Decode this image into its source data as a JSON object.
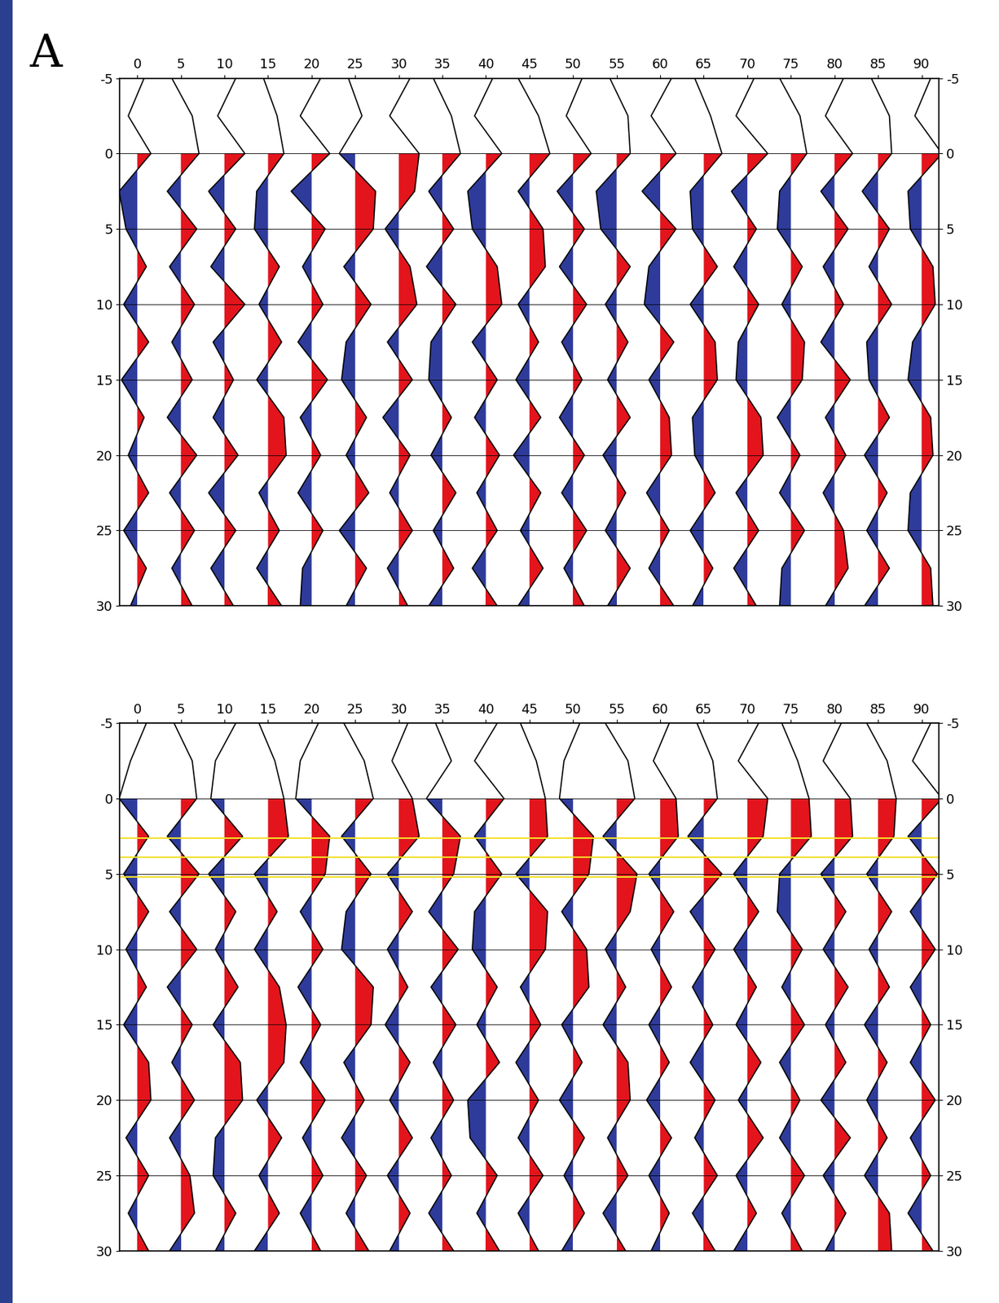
{
  "panel_label": "A",
  "chart_data": [
    {
      "type": "wiggle",
      "xlim": [
        -2,
        92
      ],
      "ylim": [
        -5,
        30
      ],
      "xticks": [
        0,
        5,
        10,
        15,
        20,
        25,
        30,
        35,
        40,
        45,
        50,
        55,
        60,
        65,
        70,
        75,
        80,
        85,
        90
      ],
      "yticks": [
        -5,
        0,
        5,
        10,
        15,
        20,
        25,
        30
      ],
      "grid": true,
      "fill_from": 0,
      "positive_color": "#e3141c",
      "negative_color": "#2e3b9a",
      "times": [
        -5,
        -2.5,
        0,
        2.5,
        5,
        7.5,
        10,
        12.5,
        15,
        17.5,
        20,
        22.5,
        25,
        27.5,
        30
      ],
      "traces": [
        {
          "position": 0,
          "amplitude": [
            0.3,
            -0.4,
            0.6,
            -0.8,
            -0.5,
            0.4,
            -0.6,
            0.5,
            -0.7,
            0.3,
            -0.4,
            0.5,
            -0.6,
            0.4,
            -0.3
          ]
        },
        {
          "position": 5,
          "amplitude": [
            -0.4,
            0.5,
            0.8,
            -0.6,
            0.7,
            -0.5,
            0.6,
            -0.4,
            0.5,
            -0.6,
            0.7,
            -0.5,
            0.6,
            -0.4,
            0.5
          ]
        },
        {
          "position": 10,
          "amplitude": [
            0.5,
            -0.3,
            0.9,
            -0.7,
            0.5,
            -0.6,
            0.9,
            -0.5,
            0.4,
            -0.5,
            0.6,
            -0.7,
            0.5,
            -0.6,
            0.4
          ]
        },
        {
          "position": 15,
          "amplitude": [
            -0.2,
            0.4,
            0.7,
            -0.5,
            -0.6,
            0.5,
            -0.4,
            0.6,
            -0.5,
            0.7,
            0.8,
            -0.4,
            0.5,
            -0.5,
            0.6
          ]
        },
        {
          "position": 20,
          "amplitude": [
            0.4,
            -0.5,
            0.8,
            -0.9,
            0.6,
            -0.4,
            0.5,
            -0.6,
            0.7,
            -0.5,
            0.4,
            -0.6,
            0.5,
            -0.4,
            -0.5
          ]
        },
        {
          "position": 25,
          "amplitude": [
            -0.3,
            0.3,
            -0.7,
            0.9,
            0.8,
            -0.5,
            0.7,
            -0.4,
            -0.6,
            0.5,
            -0.4,
            0.6,
            -0.7,
            0.5,
            -0.4
          ]
        },
        {
          "position": 30,
          "amplitude": [
            0.5,
            -0.4,
            0.9,
            0.7,
            -0.6,
            0.5,
            0.8,
            -0.5,
            0.6,
            -0.7,
            0.5,
            -0.4,
            0.6,
            -0.5,
            0.4
          ]
        },
        {
          "position": 35,
          "amplitude": [
            -0.4,
            0.4,
            0.8,
            -0.6,
            0.5,
            -0.7,
            0.6,
            -0.5,
            -0.6,
            0.4,
            -0.5,
            0.6,
            -0.4,
            0.5,
            -0.6
          ]
        },
        {
          "position": 40,
          "amplitude": [
            0.3,
            -0.5,
            0.7,
            -0.8,
            -0.6,
            0.5,
            0.7,
            -0.6,
            0.5,
            -0.5,
            0.6,
            -0.4,
            0.5,
            -0.6,
            0.5
          ]
        },
        {
          "position": 45,
          "amplitude": [
            -0.5,
            0.4,
            0.9,
            -0.5,
            0.6,
            0.7,
            -0.5,
            0.4,
            -0.6,
            0.5,
            -0.7,
            0.5,
            -0.4,
            0.6,
            -0.5
          ]
        },
        {
          "position": 50,
          "amplitude": [
            0.4,
            -0.3,
            0.8,
            -0.7,
            0.5,
            -0.6,
            0.6,
            -0.5,
            0.4,
            -0.6,
            0.5,
            -0.5,
            0.6,
            -0.4,
            0.5
          ]
        },
        {
          "position": 55,
          "amplitude": [
            -0.3,
            0.5,
            0.6,
            -0.9,
            -0.7,
            0.6,
            -0.5,
            0.5,
            -0.4,
            0.6,
            -0.6,
            0.4,
            -0.5,
            0.6,
            -0.4
          ]
        },
        {
          "position": 60,
          "amplitude": [
            0.5,
            -0.4,
            0.7,
            -0.8,
            0.7,
            -0.5,
            -0.7,
            0.6,
            -0.5,
            0.4,
            0.5,
            -0.6,
            0.4,
            -0.5,
            0.6
          ]
        },
        {
          "position": 65,
          "amplitude": [
            -0.4,
            0.3,
            0.8,
            -0.6,
            -0.5,
            0.6,
            -0.6,
            0.5,
            0.6,
            -0.5,
            -0.4,
            0.5,
            -0.6,
            0.4,
            -0.5
          ]
        },
        {
          "position": 70,
          "amplitude": [
            0.3,
            -0.5,
            0.9,
            -0.7,
            0.4,
            -0.6,
            0.5,
            -0.4,
            -0.5,
            0.6,
            0.7,
            -0.5,
            0.5,
            -0.6,
            0.4
          ]
        },
        {
          "position": 75,
          "amplitude": [
            -0.5,
            0.4,
            0.7,
            -0.5,
            -0.6,
            0.5,
            -0.4,
            0.6,
            0.5,
            -0.6,
            0.4,
            -0.5,
            0.6,
            -0.4,
            -0.5
          ]
        },
        {
          "position": 80,
          "amplitude": [
            0.4,
            -0.4,
            0.8,
            -0.6,
            0.6,
            -0.5,
            0.4,
            -0.6,
            0.7,
            -0.4,
            0.5,
            -0.5,
            0.4,
            0.6,
            -0.4
          ]
        },
        {
          "position": 85,
          "amplitude": [
            -0.3,
            0.5,
            0.6,
            -0.7,
            0.5,
            -0.4,
            0.6,
            -0.5,
            -0.4,
            0.5,
            -0.6,
            0.4,
            -0.5,
            0.5,
            -0.6
          ]
        },
        {
          "position": 90,
          "amplitude": [
            0.4,
            -0.3,
            0.9,
            -0.6,
            -0.5,
            0.5,
            0.6,
            -0.4,
            -0.6,
            0.4,
            0.5,
            -0.5,
            -0.6,
            0.4,
            0.5
          ]
        }
      ]
    },
    {
      "type": "wiggle",
      "xlim": [
        -2,
        92
      ],
      "ylim": [
        -5,
        30
      ],
      "xticks": [
        0,
        5,
        10,
        15,
        20,
        25,
        30,
        35,
        40,
        45,
        50,
        55,
        60,
        65,
        70,
        75,
        80,
        85,
        90
      ],
      "yticks": [
        -5,
        0,
        5,
        10,
        15,
        20,
        25,
        30
      ],
      "grid": true,
      "fill_from": 0,
      "positive_color": "#e3141c",
      "negative_color": "#2e3b9a",
      "picks": [
        2.6,
        3.9,
        5.2
      ],
      "picks_color": "#f2e02a",
      "times": [
        -5,
        -2.5,
        0,
        2.5,
        5,
        7.5,
        10,
        12.5,
        15,
        17.5,
        20,
        22.5,
        25,
        27.5,
        30
      ],
      "traces": [
        {
          "position": 0,
          "amplitude": [
            0.4,
            -0.3,
            -0.8,
            0.5,
            -0.6,
            0.5,
            -0.5,
            0.4,
            -0.6,
            0.5,
            0.6,
            -0.5,
            0.5,
            -0.4,
            0.5
          ]
        },
        {
          "position": 5,
          "amplitude": [
            -0.3,
            0.5,
            0.7,
            -0.6,
            0.8,
            -0.5,
            0.7,
            -0.6,
            0.5,
            -0.4,
            0.6,
            -0.5,
            0.4,
            0.6,
            -0.5
          ]
        },
        {
          "position": 10,
          "amplitude": [
            0.5,
            -0.4,
            -0.6,
            0.8,
            -0.7,
            0.5,
            -0.4,
            0.6,
            -0.5,
            0.7,
            0.8,
            -0.4,
            -0.5,
            0.5,
            -0.4
          ]
        },
        {
          "position": 15,
          "amplitude": [
            -0.4,
            0.3,
            0.7,
            0.9,
            -0.6,
            0.4,
            -0.6,
            0.5,
            0.8,
            0.7,
            -0.5,
            0.6,
            -0.4,
            0.5,
            -0.6
          ]
        },
        {
          "position": 20,
          "amplitude": [
            0.3,
            -0.5,
            -0.7,
            0.8,
            0.6,
            -0.5,
            0.5,
            -0.6,
            0.4,
            -0.5,
            0.6,
            -0.4,
            0.5,
            -0.5,
            0.4
          ]
        },
        {
          "position": 25,
          "amplitude": [
            -0.5,
            0.4,
            0.8,
            -0.6,
            0.7,
            -0.4,
            -0.6,
            0.8,
            0.7,
            -0.5,
            0.4,
            -0.6,
            0.5,
            -0.4,
            0.6
          ]
        },
        {
          "position": 30,
          "amplitude": [
            0.4,
            -0.3,
            0.6,
            0.9,
            -0.5,
            0.6,
            -0.5,
            0.4,
            -0.6,
            0.5,
            -0.4,
            0.6,
            -0.5,
            0.5,
            -0.4
          ]
        },
        {
          "position": 35,
          "amplitude": [
            -0.3,
            0.4,
            -0.7,
            0.8,
            0.5,
            -0.6,
            0.7,
            -0.5,
            0.6,
            -0.4,
            0.5,
            -0.5,
            0.4,
            -0.6,
            0.5
          ]
        },
        {
          "position": 40,
          "amplitude": [
            0.5,
            -0.5,
            0.8,
            -0.5,
            0.7,
            -0.5,
            -0.6,
            0.5,
            -0.4,
            0.6,
            -0.8,
            -0.7,
            0.5,
            -0.4,
            0.6
          ]
        },
        {
          "position": 45,
          "amplitude": [
            -0.4,
            0.3,
            0.7,
            0.8,
            -0.6,
            0.8,
            0.7,
            -0.4,
            0.5,
            -0.6,
            0.4,
            -0.5,
            0.6,
            -0.5,
            0.4
          ]
        },
        {
          "position": 50,
          "amplitude": [
            0.3,
            -0.4,
            -0.6,
            0.9,
            0.7,
            -0.5,
            0.6,
            0.7,
            -0.5,
            0.4,
            -0.6,
            0.5,
            -0.4,
            0.5,
            -0.5
          ]
        },
        {
          "position": 55,
          "amplitude": [
            -0.5,
            0.5,
            0.8,
            -0.6,
            0.9,
            0.6,
            -0.5,
            0.4,
            -0.6,
            0.5,
            0.6,
            -0.4,
            0.5,
            -0.6,
            0.4
          ]
        },
        {
          "position": 60,
          "amplitude": [
            0.4,
            -0.3,
            0.7,
            0.8,
            -0.5,
            0.6,
            -0.4,
            0.5,
            -0.5,
            0.4,
            -0.6,
            0.5,
            -0.5,
            0.4,
            -0.4
          ]
        },
        {
          "position": 65,
          "amplitude": [
            -0.3,
            0.4,
            0.6,
            -0.7,
            0.8,
            -0.6,
            0.5,
            -0.5,
            0.4,
            -0.6,
            0.5,
            -0.4,
            0.6,
            -0.5,
            0.5
          ]
        },
        {
          "position": 70,
          "amplitude": [
            0.5,
            -0.4,
            0.9,
            0.7,
            -0.6,
            0.5,
            -0.6,
            0.4,
            -0.5,
            0.6,
            -0.4,
            0.7,
            -0.5,
            0.4,
            -0.6
          ]
        },
        {
          "position": 75,
          "amplitude": [
            -0.4,
            0.3,
            0.8,
            0.9,
            -0.5,
            -0.6,
            0.5,
            -0.4,
            0.6,
            -0.5,
            0.4,
            -0.5,
            0.6,
            -0.4,
            0.5
          ]
        },
        {
          "position": 80,
          "amplitude": [
            0.3,
            -0.5,
            0.7,
            0.8,
            -0.6,
            0.5,
            -0.5,
            0.6,
            -0.4,
            0.5,
            -0.6,
            0.7,
            -0.5,
            0.5,
            -0.4
          ]
        },
        {
          "position": 85,
          "amplitude": [
            -0.5,
            0.4,
            0.8,
            0.7,
            -0.5,
            0.6,
            -0.4,
            0.5,
            -0.6,
            0.4,
            -0.5,
            0.4,
            -0.6,
            0.5,
            0.6
          ]
        },
        {
          "position": 90,
          "amplitude": [
            0.4,
            -0.4,
            0.9,
            -0.6,
            0.7,
            -0.5,
            0.6,
            -0.5,
            0.4,
            -0.5,
            0.6,
            -0.5,
            0.4,
            -0.6,
            0.5
          ]
        }
      ]
    }
  ]
}
